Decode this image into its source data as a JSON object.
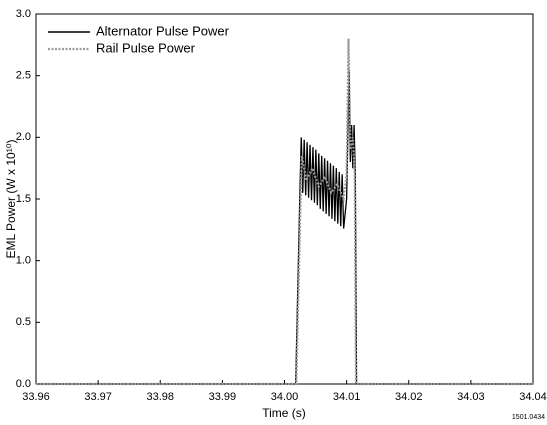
{
  "chart_data": {
    "type": "line",
    "x_label": "Time (s)",
    "y_label": "EML Power (W x 10¹⁰)",
    "annotation": "1501.0434",
    "xlim": [
      33.96,
      34.04
    ],
    "xticks": [
      33.96,
      33.97,
      33.98,
      33.99,
      {
        "value": 34,
        "label": "34.00"
      },
      34.01,
      34.02,
      34.03,
      34.04
    ],
    "ylim": [
      0,
      3
    ],
    "yticks": [
      {
        "value": 0,
        "label": "0.0"
      },
      0.5,
      {
        "value": 1,
        "label": "1.0"
      },
      1.5,
      {
        "value": 2,
        "label": "2.0"
      },
      2.5,
      {
        "value": 3,
        "label": "3.0"
      }
    ],
    "legend": "upper left",
    "series": [
      {
        "name": "Alternator Pulse Power",
        "color": "#000000",
        "style": "solid",
        "x": [
          33.96,
          34.0018,
          34.0025,
          34.0027,
          34.00294,
          34.00317,
          34.00341,
          34.00364,
          34.00388,
          34.00411,
          34.00435,
          34.00458,
          34.00482,
          34.00505,
          34.00529,
          34.00552,
          34.00576,
          34.00599,
          34.00623,
          34.00646,
          34.0067,
          34.00693,
          34.00717,
          34.0074,
          34.00764,
          34.00787,
          34.00811,
          34.00834,
          34.00858,
          34.00881,
          34.00905,
          34.00928,
          34.00952,
          34.01,
          34.0104,
          34.0106,
          34.0108,
          34.011,
          34.0112,
          34.0114,
          34.0116,
          34.04
        ],
        "values": [
          0,
          0,
          1.6,
          2.0,
          1.55,
          1.98,
          1.53,
          1.96,
          1.51,
          1.94,
          1.49,
          1.92,
          1.47,
          1.9,
          1.45,
          1.87,
          1.42,
          1.85,
          1.4,
          1.83,
          1.38,
          1.81,
          1.36,
          1.79,
          1.34,
          1.77,
          1.32,
          1.75,
          1.3,
          1.72,
          1.28,
          1.7,
          1.26,
          1.5,
          2.55,
          1.8,
          2.1,
          1.75,
          2.1,
          1.7,
          0,
          0
        ]
      },
      {
        "name": "Rail Pulse Power",
        "color": "#999999",
        "style": "dotted",
        "x": [
          33.96,
          34.0019,
          34.0026,
          34.0028,
          34.0035,
          34.0045,
          34.0055,
          34.0065,
          34.0075,
          34.0085,
          34.0095,
          34.01,
          34.0103,
          34.0106,
          34.011,
          34.0113,
          34.0115,
          34.04
        ],
        "values": [
          0,
          0,
          1.5,
          1.85,
          1.65,
          1.75,
          1.6,
          1.68,
          1.55,
          1.62,
          1.5,
          1.7,
          2.8,
          1.9,
          2.0,
          1.7,
          0,
          0
        ]
      }
    ]
  }
}
